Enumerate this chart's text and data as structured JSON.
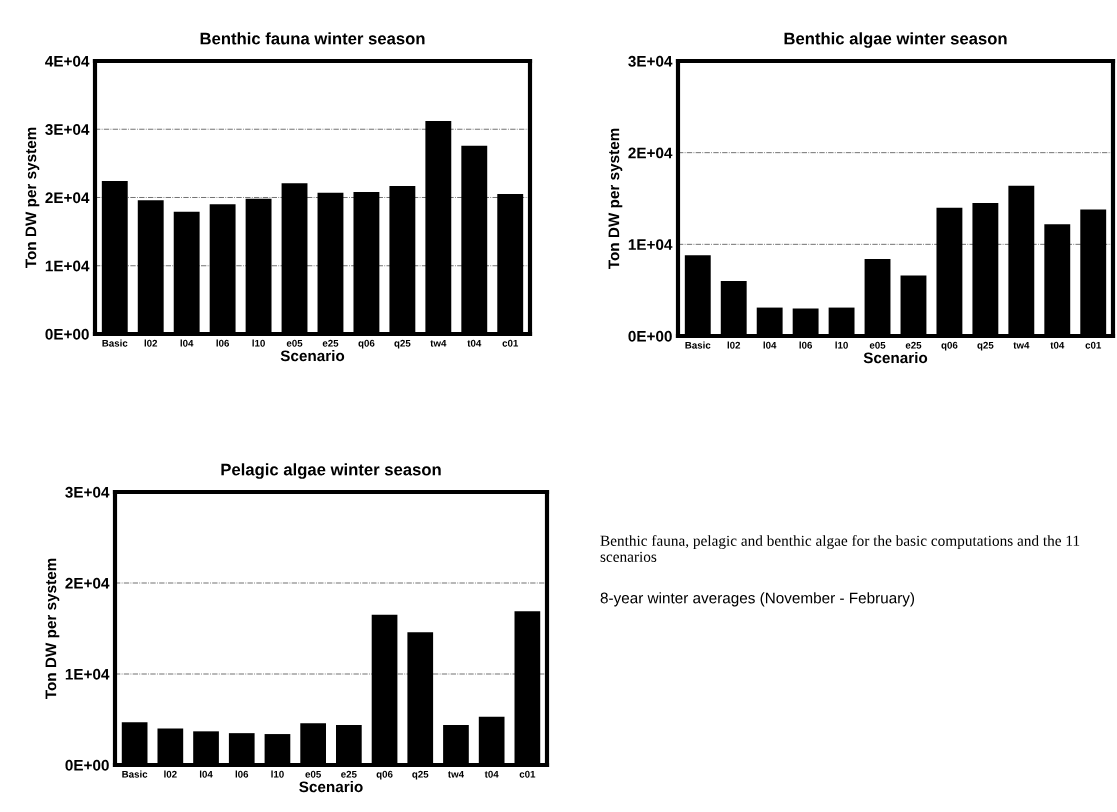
{
  "chart_data": [
    {
      "type": "bar",
      "title": "Benthic fauna winter season",
      "xlabel": "Scenario",
      "ylabel": "Ton DW per system",
      "categories": [
        "Basic",
        "l02",
        "l04",
        "l06",
        "l10",
        "e05",
        "e25",
        "q06",
        "q25",
        "tw4",
        "t04",
        "c01"
      ],
      "values": [
        22400,
        19600,
        17900,
        19000,
        19800,
        22100,
        20700,
        20800,
        21700,
        31200,
        27600,
        20500
      ],
      "color": "#000000",
      "ylim": [
        0,
        40000
      ],
      "yticks": [
        {
          "value": 0,
          "label": "0E+00"
        },
        {
          "value": 10000,
          "label": "1E+04"
        },
        {
          "value": 20000,
          "label": "2E+04"
        },
        {
          "value": 30000,
          "label": "3E+04"
        },
        {
          "value": 40000,
          "label": "4E+04"
        }
      ],
      "grid": "y"
    },
    {
      "type": "bar",
      "title": "Benthic algae winter season",
      "xlabel": "Scenario",
      "ylabel": "Ton DW per system",
      "categories": [
        "Basic",
        "l02",
        "l04",
        "l06",
        "l10",
        "e05",
        "e25",
        "q06",
        "q25",
        "tw4",
        "t04",
        "c01"
      ],
      "values": [
        8800,
        6000,
        3100,
        3000,
        3100,
        8400,
        6600,
        14000,
        14500,
        16400,
        12200,
        13800
      ],
      "color": "#000000",
      "ylim": [
        0,
        30000
      ],
      "yticks": [
        {
          "value": 0,
          "label": "0E+00"
        },
        {
          "value": 10000,
          "label": "1E+04"
        },
        {
          "value": 20000,
          "label": "2E+04"
        },
        {
          "value": 30000,
          "label": "3E+04"
        }
      ],
      "grid": "y"
    },
    {
      "type": "bar",
      "title": "Pelagic algae winter season",
      "xlabel": "Scenario",
      "ylabel": "Ton DW per system",
      "categories": [
        "Basic",
        "l02",
        "l04",
        "l06",
        "l10",
        "e05",
        "e25",
        "q06",
        "q25",
        "tw4",
        "t04",
        "c01"
      ],
      "values": [
        4700,
        4000,
        3700,
        3500,
        3400,
        4600,
        4400,
        16500,
        14600,
        4400,
        5300,
        16900
      ],
      "color": "#000000",
      "ylim": [
        0,
        30000
      ],
      "yticks": [
        {
          "value": 0,
          "label": "0E+00"
        },
        {
          "value": 10000,
          "label": "1E+04"
        },
        {
          "value": 20000,
          "label": "2E+04"
        },
        {
          "value": 30000,
          "label": "3E+04"
        }
      ],
      "grid": "y"
    },
    {
      "type": "other",
      "annotations": [
        "Benthic fauna, pelagic and benthic algae for the basic computations and the 11 scenarios",
        "8-year winter averages (November - February)"
      ]
    }
  ]
}
